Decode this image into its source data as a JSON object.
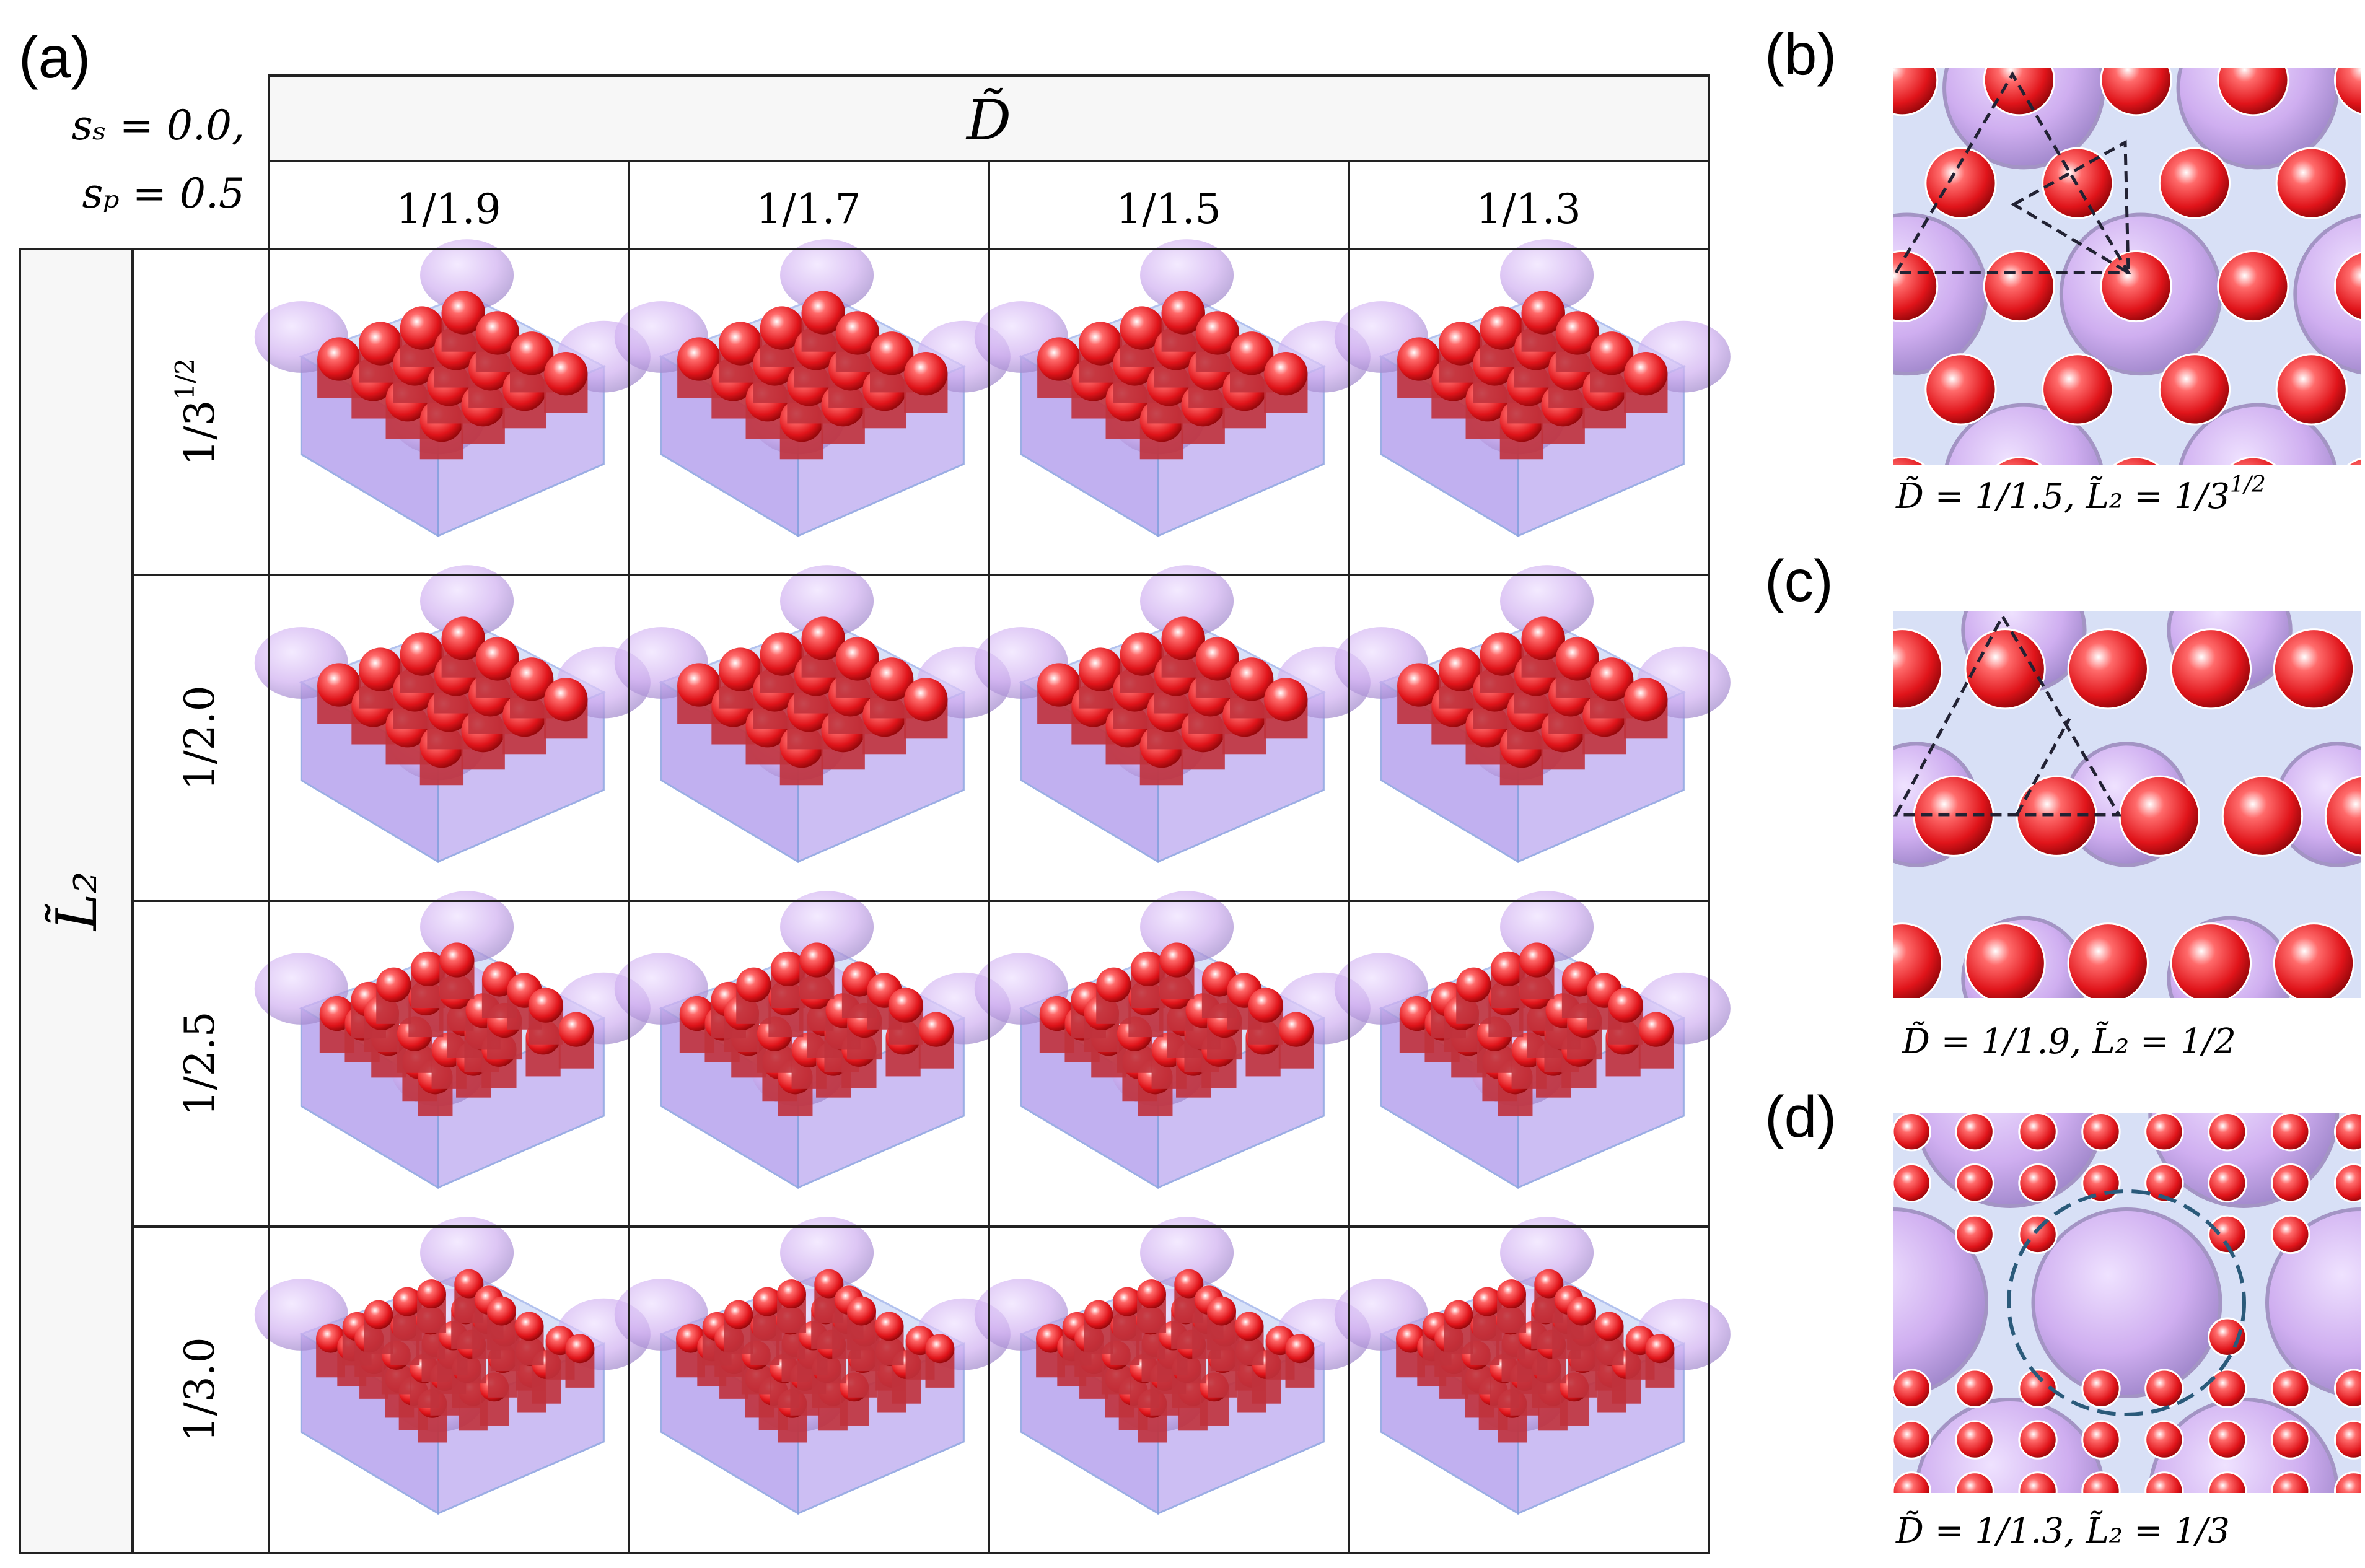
{
  "panel_a": {
    "label": "(a)",
    "params": [
      "sₛ = 0.0,",
      "sₚ = 0.5"
    ],
    "column_header": "D̃",
    "columns": [
      "1/1.9",
      "1/1.7",
      "1/1.5",
      "1/1.3"
    ],
    "row_header": "L̃₂",
    "rows": [
      {
        "text": "1/3",
        "sup": "1/2"
      },
      {
        "text": "1/2.0"
      },
      {
        "text": "1/2.5"
      },
      {
        "text": "1/3.0"
      }
    ]
  },
  "panels": [
    {
      "label": "(b)",
      "caption": {
        "text": "D̃ = 1/1.5,  L̃₂ = 1/3",
        "sup": "1/2"
      }
    },
    {
      "label": "(c)",
      "caption": {
        "text": "D̃ = 1/1.9,  L̃₂ = 1/2"
      }
    },
    {
      "label": "(d)",
      "caption": {
        "text": "D̃ = 1/1.3,  L̃₂ = 1/3"
      }
    }
  ]
}
